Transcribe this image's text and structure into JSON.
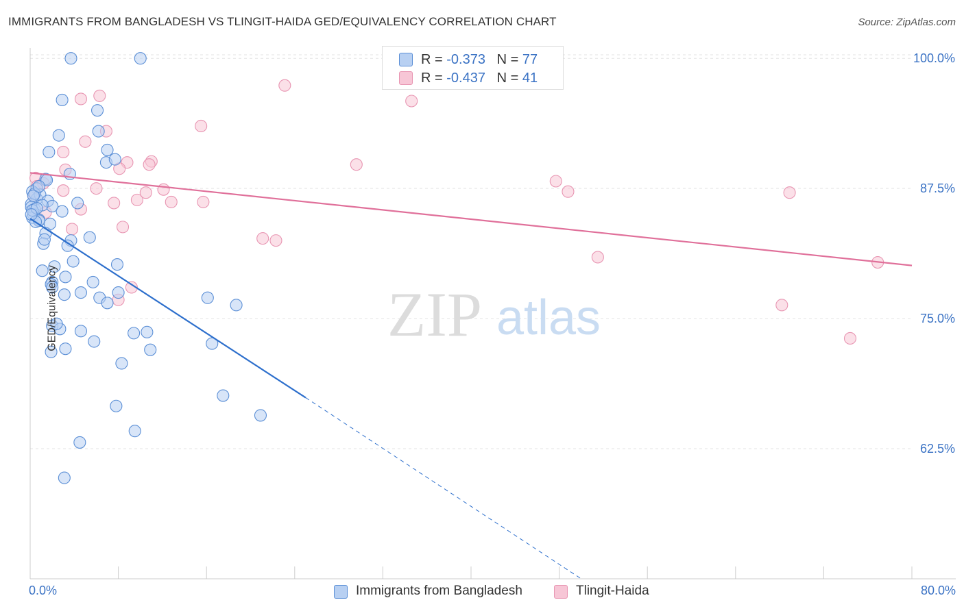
{
  "title": "IMMIGRANTS FROM BANGLADESH VS TLINGIT-HAIDA GED/EQUIVALENCY CORRELATION CHART",
  "source": "Source: ZipAtlas.com",
  "watermark": {
    "zip": "ZIP",
    "atlas": "atlas"
  },
  "legend": {
    "series1": {
      "r_label": "R = ",
      "r_value": "-0.373",
      "n_label": "N = ",
      "n_value": "77"
    },
    "series2": {
      "r_label": "R = ",
      "r_value": "-0.437",
      "n_label": "N = ",
      "n_value": "41"
    }
  },
  "chart_data": {
    "type": "scatter",
    "title": "IMMIGRANTS FROM BANGLADESH VS TLINGIT-HAIDA GED/EQUIVALENCY CORRELATION CHART",
    "xlabel": "",
    "ylabel": "GED/Equivalency",
    "xlim": [
      0,
      80
    ],
    "ylim": [
      50,
      101
    ],
    "x_tick_labels": [
      "0.0%",
      "80.0%"
    ],
    "y_ticks": [
      62.5,
      75.0,
      87.5,
      100.0
    ],
    "y_tick_labels": [
      "62.5%",
      "75.0%",
      "87.5%",
      "100.0%"
    ],
    "colors": {
      "series1": "#5b8fd6",
      "series1_fill": "#b8d0f2",
      "series1_line": "#2d6fcc",
      "series2": "#e895b2",
      "series2_fill": "#f7c6d6",
      "series2_line": "#e0709a"
    },
    "series": [
      {
        "name": "Immigrants from Bangladesh",
        "x": [
          3.7,
          10.0,
          2.9,
          6.1,
          2.6,
          7.0,
          6.2,
          1.7,
          6.9,
          7.7,
          3.6,
          1.4,
          1.5,
          0.6,
          0.2,
          0.6,
          0.9,
          1.6,
          0.1,
          0.1,
          0.4,
          2.0,
          1.1,
          0.3,
          0.2,
          0.8,
          4.3,
          1.8,
          2.9,
          1.4,
          5.4,
          3.7,
          1.2,
          3.4,
          3.9,
          2.2,
          1.1,
          2.0,
          3.2,
          5.7,
          1.9,
          2.0,
          4.6,
          3.1,
          7.9,
          8.0,
          6.3,
          7.0,
          16.1,
          18.7,
          2.0,
          2.7,
          4.6,
          1.9,
          3.2,
          5.8,
          9.4,
          10.6,
          2.4,
          10.9,
          16.5,
          8.3,
          17.5,
          7.8,
          9.5,
          20.9,
          4.5,
          3.1,
          0.2,
          0.4,
          0.3,
          0.8,
          1.3,
          0.5,
          0.6,
          0.8,
          0.1
        ],
        "y": [
          100.0,
          100.0,
          96.0,
          95.0,
          92.6,
          91.2,
          93.0,
          91.0,
          90.0,
          90.3,
          88.9,
          88.4,
          88.3,
          87.5,
          87.2,
          86.5,
          86.9,
          86.3,
          86.0,
          85.7,
          85.5,
          85.8,
          85.9,
          85.0,
          84.7,
          84.5,
          86.1,
          84.1,
          85.3,
          83.2,
          82.8,
          82.5,
          82.2,
          82.0,
          80.5,
          80.0,
          79.6,
          78.5,
          79.0,
          78.5,
          78.3,
          78.0,
          77.5,
          77.3,
          80.2,
          77.5,
          77.0,
          76.5,
          77.0,
          76.3,
          74.3,
          74.0,
          73.8,
          71.8,
          72.1,
          72.8,
          73.6,
          73.7,
          74.5,
          72.0,
          72.6,
          70.7,
          67.6,
          66.6,
          64.2,
          65.7,
          63.1,
          59.7,
          85.4,
          87.0,
          86.8,
          84.4,
          82.6,
          84.3,
          85.6,
          87.7,
          85.0
        ],
        "trend": {
          "x0": 0.0,
          "y0": 84.6,
          "x1": 25.0,
          "y1": 67.4,
          "dashed_x1": 50.0,
          "dashed_y1": 50.0
        }
      },
      {
        "name": "Tlingit-Haida",
        "x": [
          4.6,
          6.3,
          23.1,
          34.6,
          6.9,
          15.5,
          5.0,
          8.8,
          8.1,
          11.0,
          10.8,
          12.1,
          29.6,
          3.0,
          0.5,
          0.6,
          1.2,
          3.2,
          6.0,
          3.0,
          12.8,
          15.7,
          9.7,
          10.5,
          7.6,
          4.6,
          1.4,
          3.8,
          21.1,
          22.3,
          47.7,
          48.8,
          68.9,
          76.9,
          51.5,
          68.2,
          74.4,
          8.4,
          9.2,
          8.0,
          0.3
        ],
        "y": [
          96.1,
          96.4,
          97.4,
          95.9,
          93.0,
          93.5,
          92.0,
          90.0,
          89.4,
          90.1,
          89.8,
          87.4,
          89.8,
          91.0,
          88.5,
          87.7,
          88.0,
          89.3,
          87.5,
          87.3,
          86.2,
          86.2,
          86.4,
          87.1,
          86.1,
          85.5,
          85.2,
          83.6,
          82.7,
          82.5,
          88.2,
          87.2,
          87.1,
          80.4,
          80.9,
          76.3,
          73.1,
          83.8,
          78.0,
          76.8,
          86.8
        ],
        "trend": {
          "x0": 0.0,
          "y0": 89.0,
          "x1": 80.0,
          "y1": 80.1
        }
      }
    ]
  }
}
